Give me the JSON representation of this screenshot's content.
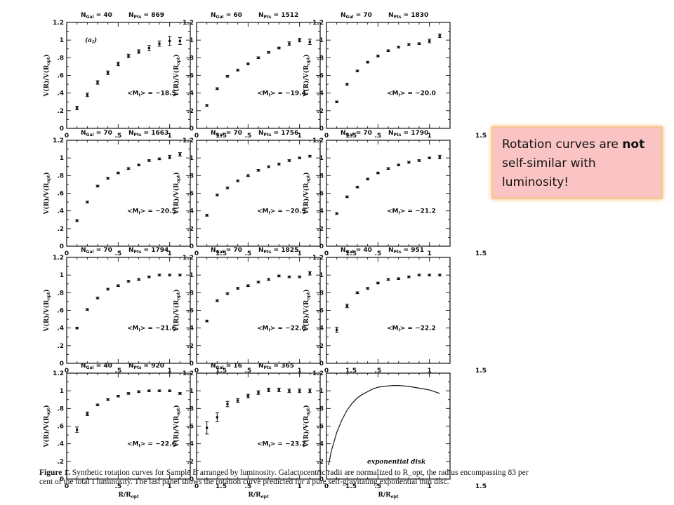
{
  "callout": {
    "pre": "Rotation curves are ",
    "bold": "not",
    "post": " self-similar with luminosity!"
  },
  "caption": {
    "label": "Figure 1.",
    "text": " Synthetic rotation curves for Sample B arranged by luminosity. Galactocentric radii are normalized to R_opt, the radius encompassing 83 per cent of the total I luminosity. The last panel shows the rotation curve predicted for a pure self-gravitating exponential thin disc."
  },
  "axes": {
    "ylabel": "V(R)/V(R",
    "ylabel_sub": "opt",
    "ylabel_end": ")",
    "xlabel": "R/R",
    "xlabel_sub": "opt",
    "yticks": [
      "0",
      ".2",
      ".4",
      ".6",
      ".8",
      "1",
      "1.2"
    ],
    "xticks": [
      "0",
      ".5",
      "1",
      "1.5"
    ],
    "ylim": [
      0,
      1.2
    ],
    "xlim": [
      0,
      1.2
    ]
  },
  "chart_data": [
    {
      "type": "scatter",
      "ngal": "40",
      "npts": "869",
      "mag": "= −18.5",
      "tag": "(a",
      "x": [
        0.1,
        0.2,
        0.3,
        0.4,
        0.5,
        0.6,
        0.7,
        0.8,
        0.9,
        1.0,
        1.1
      ],
      "y": [
        0.23,
        0.38,
        0.52,
        0.63,
        0.73,
        0.82,
        0.87,
        0.91,
        0.96,
        0.99,
        0.99
      ],
      "err": [
        0.02,
        0.02,
        0.02,
        0.02,
        0.02,
        0.02,
        0.02,
        0.03,
        0.03,
        0.05,
        0.04
      ]
    },
    {
      "type": "scatter",
      "ngal": "60",
      "npts": "1512",
      "mag": "= −19.4",
      "x": [
        0.1,
        0.2,
        0.3,
        0.4,
        0.5,
        0.6,
        0.7,
        0.8,
        0.9,
        1.0,
        1.1
      ],
      "y": [
        0.26,
        0.45,
        0.59,
        0.66,
        0.73,
        0.8,
        0.86,
        0.91,
        0.96,
        1.0,
        0.98
      ],
      "err": [
        0.01,
        0.01,
        0.01,
        0.01,
        0.01,
        0.01,
        0.01,
        0.01,
        0.02,
        0.02,
        0.03
      ]
    },
    {
      "type": "scatter",
      "ngal": "70",
      "npts": "1830",
      "mag": "= −20.0",
      "x": [
        0.1,
        0.2,
        0.3,
        0.4,
        0.5,
        0.6,
        0.7,
        0.8,
        0.9,
        1.0,
        1.1
      ],
      "y": [
        0.3,
        0.5,
        0.65,
        0.75,
        0.82,
        0.88,
        0.92,
        0.95,
        0.96,
        0.99,
        1.05
      ],
      "err": [
        0.01,
        0.01,
        0.01,
        0.01,
        0.01,
        0.01,
        0.01,
        0.01,
        0.01,
        0.02,
        0.02
      ]
    },
    {
      "type": "scatter",
      "ngal": "70",
      "npts": "1663",
      "mag": "= −20.5",
      "x": [
        0.1,
        0.2,
        0.3,
        0.4,
        0.5,
        0.6,
        0.7,
        0.8,
        0.9,
        1.0,
        1.1
      ],
      "y": [
        0.29,
        0.5,
        0.68,
        0.77,
        0.83,
        0.88,
        0.92,
        0.97,
        0.99,
        1.01,
        1.04
      ],
      "err": [
        0.01,
        0.01,
        0.01,
        0.01,
        0.01,
        0.01,
        0.01,
        0.01,
        0.01,
        0.02,
        0.02
      ]
    },
    {
      "type": "scatter",
      "ngal": "70",
      "npts": "1756",
      "mag": "= −20.9",
      "x": [
        0.1,
        0.2,
        0.3,
        0.4,
        0.5,
        0.6,
        0.7,
        0.8,
        0.9,
        1.0,
        1.1
      ],
      "y": [
        0.35,
        0.58,
        0.66,
        0.74,
        0.8,
        0.86,
        0.9,
        0.93,
        0.97,
        1.0,
        1.02
      ],
      "err": [
        0.01,
        0.01,
        0.01,
        0.01,
        0.01,
        0.01,
        0.01,
        0.01,
        0.01,
        0.01,
        0.01
      ]
    },
    {
      "type": "scatter",
      "ngal": "70",
      "npts": "1790",
      "mag": "= −21.2",
      "x": [
        0.1,
        0.2,
        0.3,
        0.4,
        0.5,
        0.6,
        0.7,
        0.8,
        0.9,
        1.0,
        1.1
      ],
      "y": [
        0.37,
        0.56,
        0.67,
        0.76,
        0.83,
        0.88,
        0.92,
        0.95,
        0.97,
        1.0,
        1.01
      ],
      "err": [
        0.01,
        0.01,
        0.01,
        0.01,
        0.01,
        0.01,
        0.01,
        0.01,
        0.01,
        0.01,
        0.02
      ]
    },
    {
      "type": "scatter",
      "ngal": "70",
      "npts": "1794",
      "mag": "= −21.6",
      "x": [
        0.1,
        0.2,
        0.3,
        0.4,
        0.5,
        0.6,
        0.7,
        0.8,
        0.9,
        1.0,
        1.1
      ],
      "y": [
        0.4,
        0.61,
        0.74,
        0.84,
        0.88,
        0.93,
        0.95,
        0.98,
        1.0,
        1.0,
        1.0
      ],
      "err": [
        0.01,
        0.01,
        0.01,
        0.01,
        0.01,
        0.01,
        0.01,
        0.01,
        0.01,
        0.01,
        0.01
      ]
    },
    {
      "type": "scatter",
      "ngal": "70",
      "npts": "1825",
      "mag": "= −22.0",
      "x": [
        0.1,
        0.2,
        0.3,
        0.4,
        0.5,
        0.6,
        0.7,
        0.8,
        0.9,
        1.0,
        1.1
      ],
      "y": [
        0.48,
        0.71,
        0.79,
        0.85,
        0.88,
        0.92,
        0.95,
        0.99,
        0.98,
        0.98,
        1.02
      ],
      "err": [
        0.01,
        0.01,
        0.01,
        0.01,
        0.01,
        0.01,
        0.01,
        0.01,
        0.01,
        0.01,
        0.02
      ]
    },
    {
      "type": "scatter",
      "ngal": "40",
      "npts": "951",
      "mag": "= −22.2",
      "x": [
        0.1,
        0.2,
        0.3,
        0.4,
        0.5,
        0.6,
        0.7,
        0.8,
        0.9,
        1.0,
        1.1
      ],
      "y": [
        0.38,
        0.65,
        0.8,
        0.85,
        0.91,
        0.95,
        0.96,
        0.98,
        1.0,
        1.0,
        1.0
      ],
      "err": [
        0.03,
        0.02,
        0.01,
        0.01,
        0.01,
        0.01,
        0.01,
        0.01,
        0.01,
        0.01,
        0.01
      ]
    },
    {
      "type": "scatter",
      "ngal": "40",
      "npts": "920",
      "mag": "= −22.6",
      "x": [
        0.1,
        0.2,
        0.3,
        0.4,
        0.5,
        0.6,
        0.7,
        0.8,
        0.9,
        1.0,
        1.1
      ],
      "y": [
        0.56,
        0.74,
        0.84,
        0.9,
        0.94,
        0.97,
        0.99,
        1.0,
        1.0,
        1.0,
        0.97
      ],
      "err": [
        0.03,
        0.02,
        0.01,
        0.01,
        0.01,
        0.01,
        0.01,
        0.01,
        0.01,
        0.01,
        0.01
      ]
    },
    {
      "type": "scatter",
      "ngal": "16",
      "npts": "365",
      "mag": "= −23.2",
      "x": [
        0.1,
        0.2,
        0.3,
        0.4,
        0.5,
        0.6,
        0.7,
        0.8,
        0.9,
        1.0,
        1.1
      ],
      "y": [
        0.58,
        0.7,
        0.85,
        0.89,
        0.94,
        0.98,
        1.01,
        1.01,
        1.0,
        1.0,
        1.0
      ],
      "err": [
        0.07,
        0.05,
        0.03,
        0.02,
        0.02,
        0.02,
        0.02,
        0.02,
        0.02,
        0.02,
        0.02
      ]
    },
    {
      "type": "line",
      "note": "exponential disk",
      "x": [
        0.02,
        0.05,
        0.1,
        0.15,
        0.2,
        0.25,
        0.3,
        0.35,
        0.4,
        0.45,
        0.5,
        0.55,
        0.6,
        0.65,
        0.7,
        0.75,
        0.8,
        0.85,
        0.9,
        0.95,
        1.0,
        1.05,
        1.1
      ],
      "y": [
        0.16,
        0.33,
        0.53,
        0.67,
        0.78,
        0.86,
        0.92,
        0.96,
        0.99,
        1.02,
        1.04,
        1.05,
        1.055,
        1.06,
        1.06,
        1.055,
        1.05,
        1.04,
        1.03,
        1.02,
        1.01,
        0.99,
        0.97
      ]
    }
  ]
}
